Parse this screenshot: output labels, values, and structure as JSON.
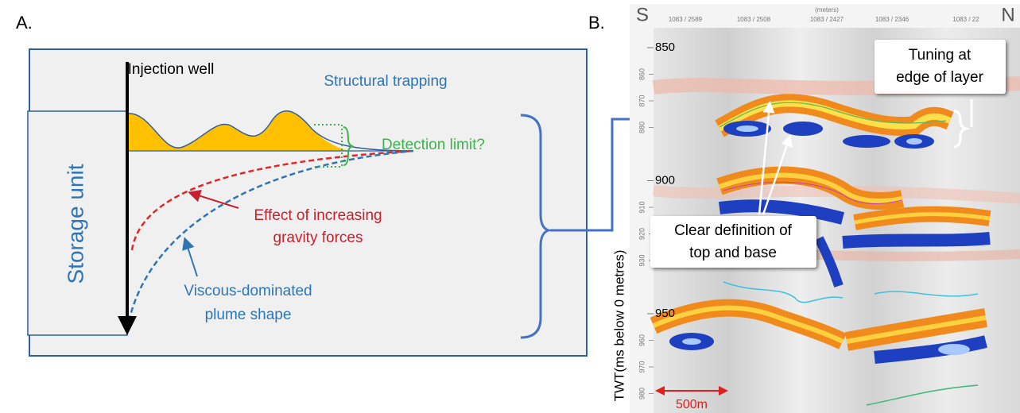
{
  "panel_a": {
    "label": "A.",
    "injection_well": "Injection well",
    "structural_trapping": "Structural trapping",
    "detection_limit": "Detection limit?",
    "storage_unit": "Storage unit",
    "gravity_effect": [
      "Effect of increasing",
      "gravity forces"
    ],
    "viscous_plume": [
      "Viscous-dominated",
      "plume shape"
    ]
  },
  "panel_b": {
    "label": "B.",
    "south": "S",
    "north": "N",
    "units": "(meters)",
    "trace_labels": [
      "1083 / 2589",
      "1083 / 2508",
      "1083 / 2427",
      "1083 / 2346",
      "1083 / 22"
    ],
    "major_depths": [
      850,
      900,
      950
    ],
    "minor_depths": [
      860,
      870,
      880,
      910,
      920,
      930,
      960,
      970,
      980
    ],
    "axis_label": "TWT(ms below 0 metres)",
    "tuning_callout": [
      "Tuning at",
      "edge of layer"
    ],
    "definition_callout": [
      "Clear definition of",
      "top and base"
    ],
    "scale_bar": "500m"
  }
}
